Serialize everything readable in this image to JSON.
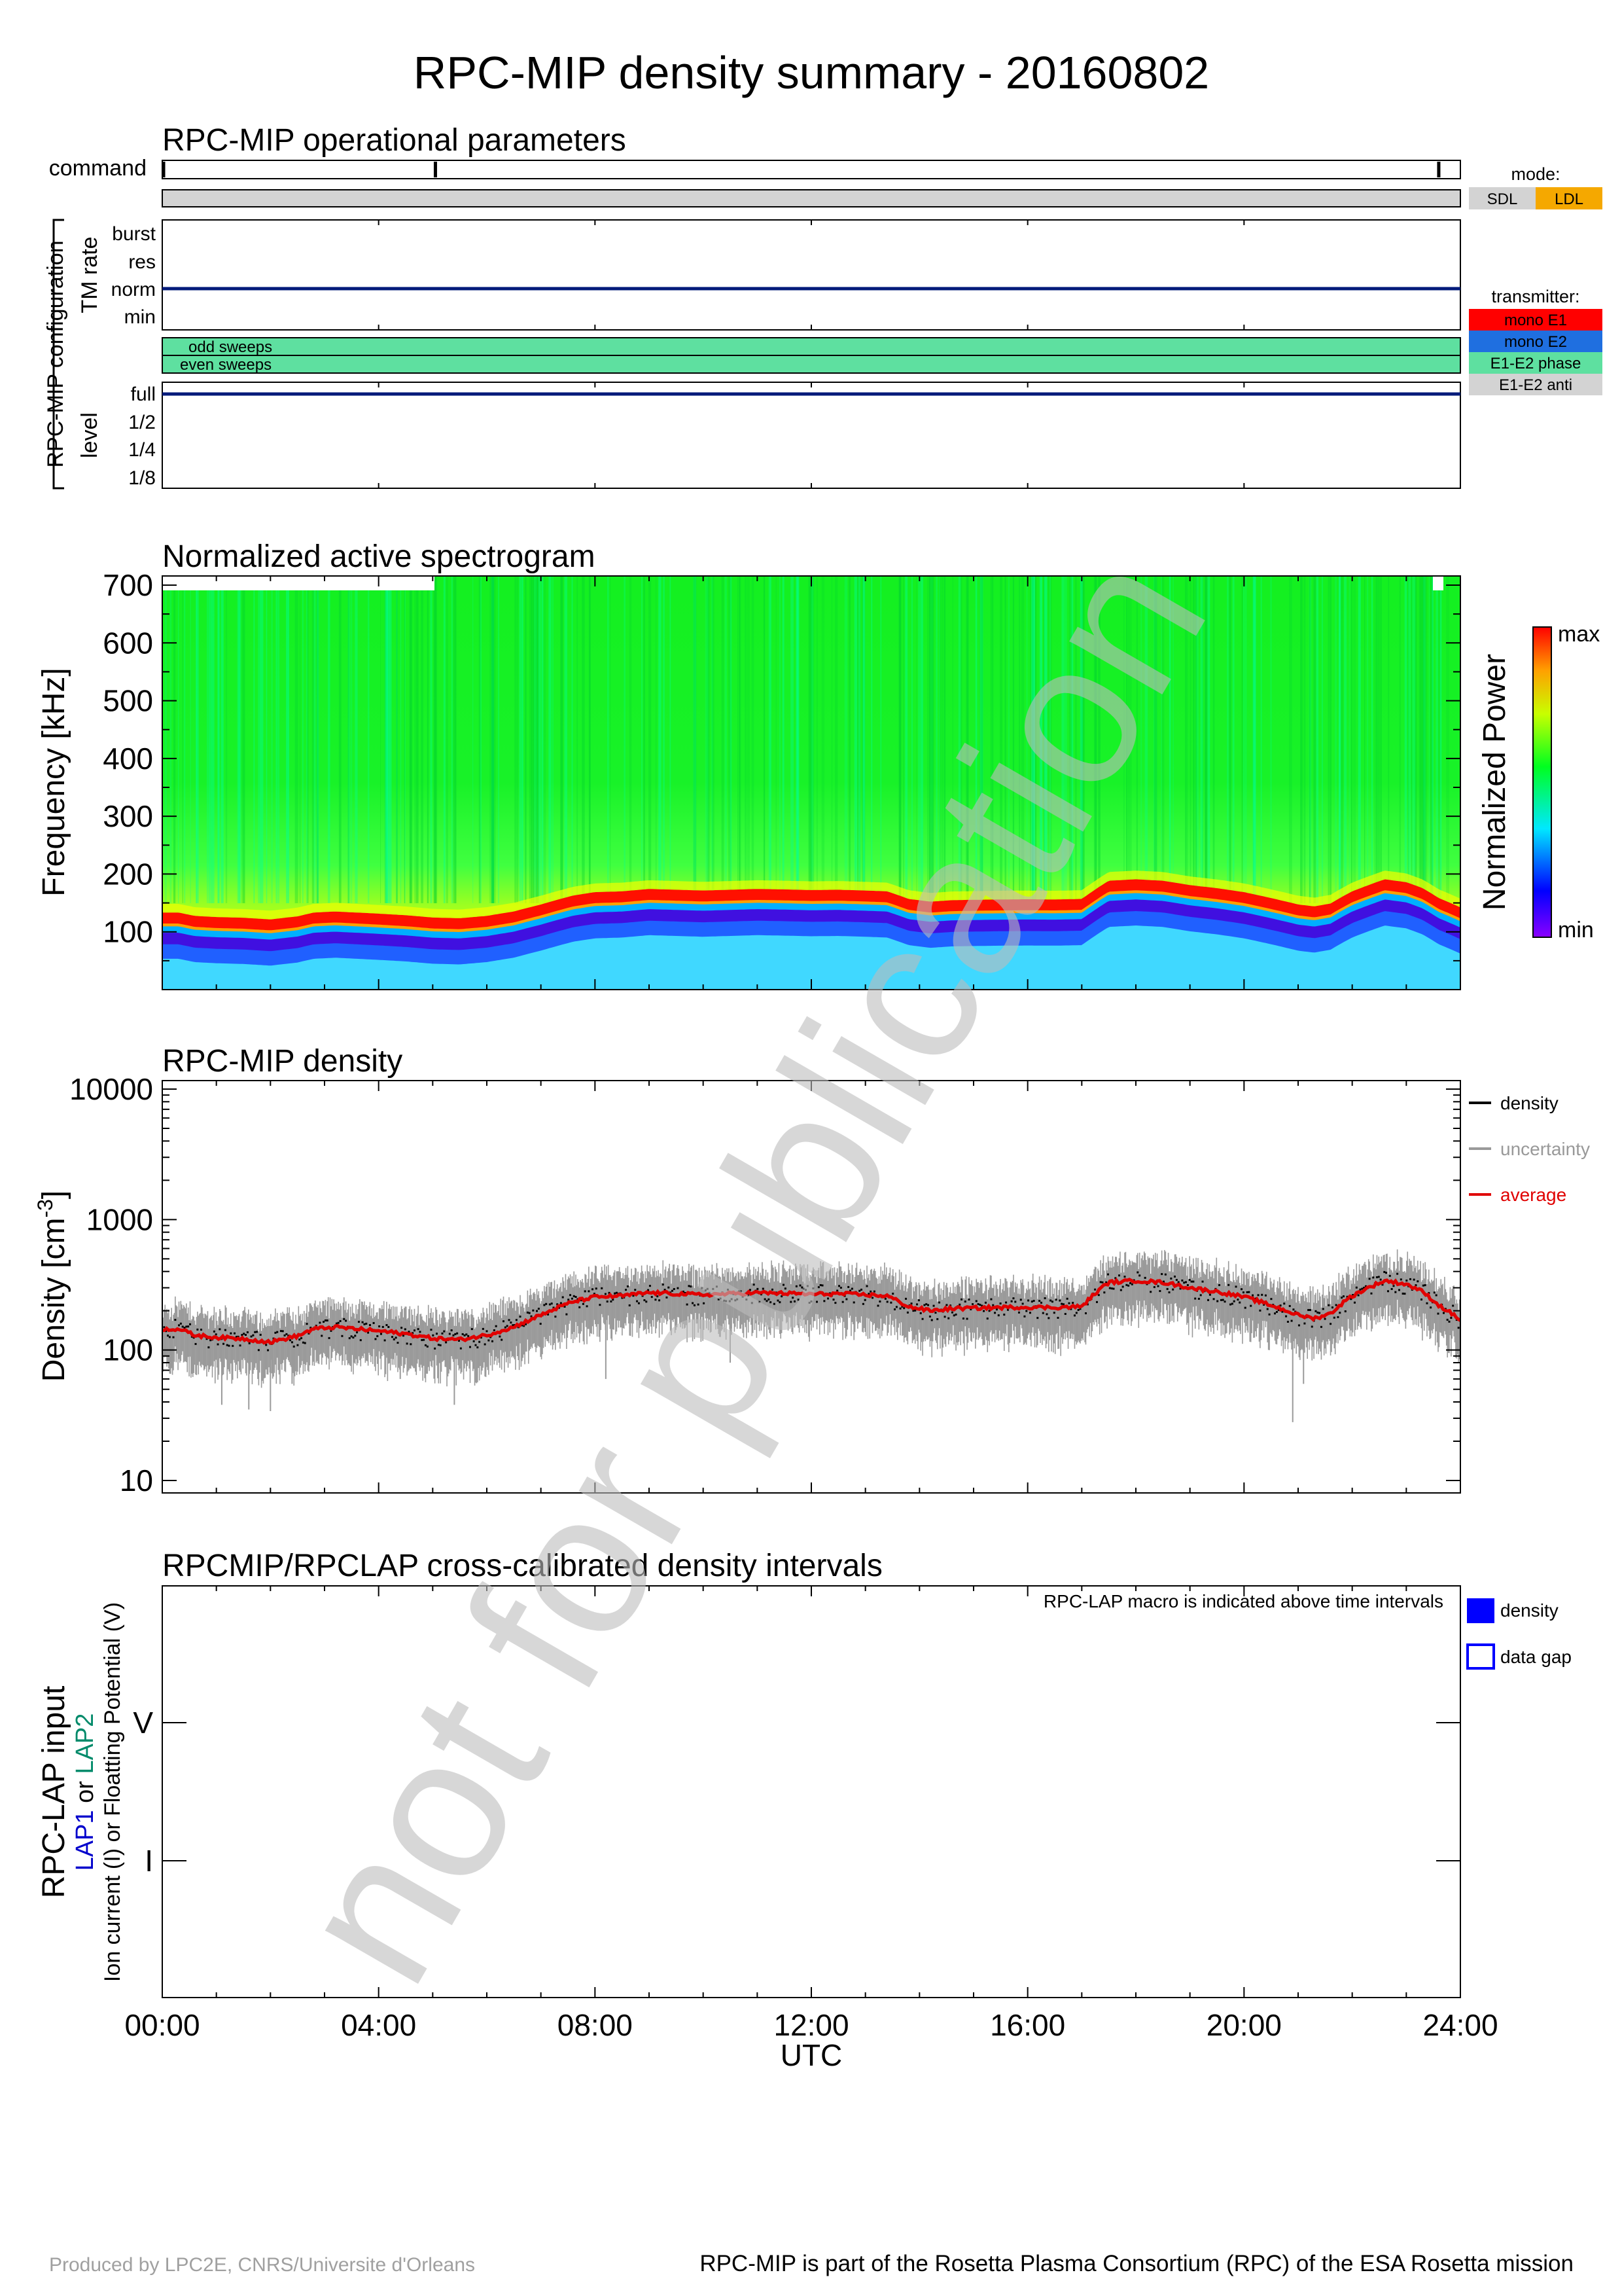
{
  "title": "RPC-MIP density summary - 20160802",
  "watermark": "not for publication",
  "footer": {
    "left": "Produced by LPC2E, CNRS/Universite d'Orleans",
    "right": "RPC-MIP is part of the Rosetta Plasma Consortium (RPC) of the ESA Rosetta mission"
  },
  "colors": {
    "sdl": "#d3d3d3",
    "ldl": "#f5a800",
    "mono_e1": "#ff0000",
    "mono_e2": "#1f6fe0",
    "e1e2_phase": "#5ee0a0",
    "e1e2_anti": "#d3d3d3",
    "density": "#000000",
    "uncertainty": "#999999",
    "average": "#e00000",
    "lap1": "#0000cc",
    "lap2": "#008a6a"
  },
  "x_axis": {
    "ticks": [
      "00:00",
      "04:00",
      "08:00",
      "12:00",
      "16:00",
      "20:00",
      "24:00"
    ],
    "label": "UTC"
  },
  "operational": {
    "title": "RPC-MIP operational parameters",
    "command_label": "command",
    "command_marks_hours": [
      0,
      5.05,
      23.6
    ],
    "config_label": "RPC-MIP configuration",
    "tm_rate_label": "TM rate",
    "tm_rate_levels": [
      "burst",
      "res",
      "norm",
      "min"
    ],
    "tm_rate_value": "norm",
    "sweeps": [
      "odd sweeps",
      "even sweeps"
    ],
    "level_label": "level",
    "levels": [
      "full",
      "1/2",
      "1/4",
      "1/8"
    ],
    "level_value": "full",
    "mode_title": "mode:",
    "modes": [
      "SDL",
      "LDL"
    ],
    "transmitter_title": "transmitter:",
    "transmitters": [
      "mono E1",
      "mono E2",
      "E1-E2 phase",
      "E1-E2 anti"
    ]
  },
  "spectrogram": {
    "title": "Normalized active spectrogram",
    "ylabel": "Frequency [kHz]",
    "yticks": [
      "100",
      "200",
      "300",
      "400",
      "500",
      "600",
      "700"
    ],
    "colorbar_label": "Normalized Power",
    "cb_max": "max",
    "cb_min": "min"
  },
  "density_panel": {
    "title": "RPC-MIP density",
    "ylabel": "Density [cm",
    "ylabel_sup": "-3",
    "ylabel_end": "]",
    "yticks": [
      "10",
      "100",
      "1000",
      "10000"
    ],
    "legend": [
      "density",
      "uncertainty",
      "average"
    ]
  },
  "lap_panel": {
    "title": "RPCMIP/RPCLAP cross-calibrated density intervals",
    "note": "RPC-LAP macro is indicated above time intervals",
    "ylabel1": "RPC-LAP input",
    "ylabel2_a": "LAP1",
    "ylabel2_b": " or ",
    "ylabel2_c": "LAP2",
    "ylabel3": "Ion current (I) or Floatting Potential (V)",
    "yticks": [
      "V",
      "I"
    ],
    "legend": [
      "density",
      "data gap"
    ]
  },
  "chart_data": {
    "type": "line",
    "title": "RPC-MIP density",
    "xlabel": "UTC",
    "ylabel": "Density [cm-3]",
    "xlim_hours": [
      0,
      24
    ],
    "ylim": [
      8,
      12000
    ],
    "yscale": "log",
    "series": [
      {
        "name": "average",
        "x_hours": [
          0,
          0.3,
          0.6,
          1.0,
          1.5,
          2.0,
          2.5,
          2.8,
          3.2,
          3.6,
          4.0,
          4.5,
          5.0,
          5.5,
          6.0,
          6.5,
          7.0,
          7.3,
          7.6,
          8.0,
          8.5,
          9.0,
          9.5,
          10.0,
          10.5,
          11.0,
          11.5,
          12.0,
          12.5,
          13.0,
          13.4,
          13.8,
          14.2,
          14.6,
          15.0,
          15.5,
          16.0,
          16.5,
          17.0,
          17.2,
          17.5,
          18.0,
          18.5,
          19.0,
          19.5,
          20.0,
          20.5,
          21.0,
          21.3,
          21.6,
          22.0,
          22.3,
          22.6,
          23.0,
          23.3,
          23.6,
          24.0
        ],
        "y": [
          145,
          145,
          130,
          125,
          122,
          115,
          128,
          145,
          150,
          145,
          140,
          133,
          123,
          120,
          130,
          150,
          185,
          210,
          235,
          255,
          260,
          275,
          270,
          265,
          270,
          275,
          272,
          268,
          270,
          265,
          260,
          215,
          200,
          208,
          210,
          212,
          213,
          212,
          215,
          260,
          330,
          340,
          330,
          300,
          280,
          255,
          220,
          185,
          175,
          190,
          260,
          300,
          340,
          320,
          280,
          220,
          170
        ]
      }
    ],
    "legend": [
      "density",
      "uncertainty",
      "average"
    ]
  }
}
